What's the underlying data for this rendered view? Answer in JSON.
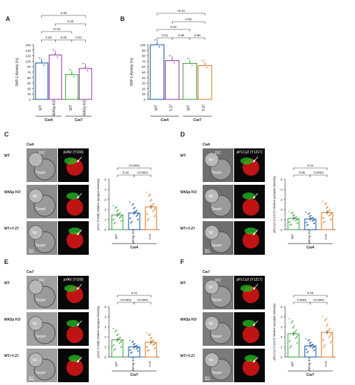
{
  "panels": {
    "A": {
      "label": "A",
      "ylabel": "SHP-1 Activity (%)",
      "yticks": [
        "0",
        "15",
        "30",
        "45",
        "60",
        "75",
        "90",
        "105",
        "120",
        "135",
        "150"
      ],
      "bars": [
        {
          "x": "WT",
          "v": 100
        },
        {
          "x": "WASp KO",
          "v": 122
        },
        {
          "x": "WT",
          "v": 68
        },
        {
          "x": "WASp KO",
          "v": 85
        }
      ],
      "groups": [
        "Cw4",
        "Cw7"
      ],
      "pvals": [
        "0.28",
        "0.05",
        "0.04",
        "<0.01",
        "0.20",
        "0.28"
      ]
    },
    "B": {
      "label": "B",
      "ylabel": "SHP-1 Activity (%)",
      "yticks": [
        "0",
        "10",
        "20",
        "30",
        "40",
        "50",
        "60",
        "70",
        "80",
        "90",
        "100"
      ],
      "bars": [
        {
          "x": "WT",
          "v": 100
        },
        {
          "x": "Y-27",
          "v": 71
        },
        {
          "x": "WT",
          "v": 66
        },
        {
          "x": "Y-27",
          "v": 62
        }
      ],
      "groups": [
        "Cw4",
        "Cw7"
      ],
      "pvals": [
        "0.04",
        "0.99",
        "0.95",
        "0.02",
        "0.83",
        "<0.01"
      ]
    },
    "C": {
      "label": "C",
      "cell": "Cw4",
      "stain": "pVAV (Y160)",
      "rows": [
        "WT",
        "WASp KO",
        "WT+Y-27"
      ],
      "ylabel": "pVAV (Y160) relative synapse intensity",
      "yticks": [
        "0",
        "1",
        "2",
        "3",
        "4",
        "5"
      ],
      "bars": [
        {
          "x": "WT",
          "v": 1.45
        },
        {
          "x": "WASp KO",
          "v": 1.65
        },
        {
          "x": "Y-27",
          "v": 2.25
        }
      ],
      "group": "Cw4",
      "pvals": [
        "0.42",
        "<0.0001",
        "<0.0001"
      ]
    },
    "D": {
      "label": "D",
      "cell": "Cw4",
      "stain": "pPLCγ2 (Y1217)",
      "rows": [
        "WT",
        "WASp KO",
        "WT+Y-27"
      ],
      "ylabel": "pPLCγ2 (Y1217) relative synapse intensity",
      "yticks": [
        "0",
        "1",
        "2",
        "3",
        "4",
        "5"
      ],
      "bars": [
        {
          "x": "WT",
          "v": 1.1
        },
        {
          "x": "WASp KO",
          "v": 1.05
        },
        {
          "x": "Y-27",
          "v": 1.7
        }
      ],
      "group": "Cw4",
      "pvals": [
        "0.99",
        "0.0004",
        "0.04"
      ]
    },
    "E": {
      "label": "E",
      "cell": "Cw7",
      "stain": "pVAV (Y160)",
      "rows": [
        "WT",
        "WASp KO",
        "WT+Y-27"
      ],
      "ylabel": "pVAV (Y160) relative synapse intensity",
      "yticks": [
        "0",
        "1",
        "2",
        "3",
        "4",
        "5"
      ],
      "bars": [
        {
          "x": "WT",
          "v": 1.7
        },
        {
          "x": "WASp KO",
          "v": 1.0
        },
        {
          "x": "Y-27",
          "v": 1.45
        }
      ],
      "group": "Cw7",
      "pvals": [
        "<0.0001",
        "<0.0001",
        "0.31"
      ]
    },
    "F": {
      "label": "F",
      "cell": "Cw7",
      "stain": "pPLCγ2 (Y1217)",
      "rows": [
        "WT",
        "WASp KO",
        "WT+Y-27"
      ],
      "ylabel": "pPLCγ2 (Y1217) relative synapse intensity",
      "yticks": [
        "0",
        "1",
        "2",
        "3",
        "4",
        "5"
      ],
      "bars": [
        {
          "x": "WT",
          "v": 2.3
        },
        {
          "x": "WASp KO",
          "v": 1.1
        },
        {
          "x": "Y-27",
          "v": 2.45
        }
      ],
      "group": "Cw7",
      "pvals": [
        "0.0001",
        "<0.0001",
        "0.16"
      ]
    }
  },
  "micro_labels": {
    "dic": "DIC",
    "target": "Target",
    "nk": "NK",
    "scale": "5μm"
  },
  "colors": {
    "wt": "#1f5fa8",
    "ko": "#a23aa8",
    "wt2": "#3aa83f",
    "y27": "#e07b22",
    "red": "#d51515",
    "green": "#22c022"
  },
  "chart_data": [
    {
      "type": "bar",
      "categories": [
        "Cw4 WT",
        "Cw4 WASp KO",
        "Cw7 WT",
        "Cw7 WASp KO"
      ],
      "values": [
        100,
        122,
        68,
        85
      ],
      "ylabel": "SHP-1 Activity (%)",
      "ylim": [
        0,
        150
      ]
    },
    {
      "type": "bar",
      "categories": [
        "Cw4 WT",
        "Cw4 Y-27",
        "Cw7 WT",
        "Cw7 Y-27"
      ],
      "values": [
        100,
        71,
        66,
        62
      ],
      "ylabel": "SHP-1 Activity (%)",
      "ylim": [
        0,
        100
      ]
    },
    {
      "type": "bar",
      "categories": [
        "WT",
        "WASp KO",
        "Y-27"
      ],
      "values": [
        1.45,
        1.65,
        2.25
      ],
      "ylabel": "pVAV (Y160) relative synapse intensity",
      "ylim": [
        0,
        5
      ]
    },
    {
      "type": "bar",
      "categories": [
        "WT",
        "WASp KO",
        "Y-27"
      ],
      "values": [
        1.1,
        1.05,
        1.7
      ],
      "ylabel": "pPLCγ2 (Y1217) relative synapse intensity",
      "ylim": [
        0,
        5
      ]
    },
    {
      "type": "bar",
      "categories": [
        "WT",
        "WASp KO",
        "Y-27"
      ],
      "values": [
        1.7,
        1.0,
        1.45
      ],
      "ylabel": "pVAV (Y160) relative synapse intensity",
      "ylim": [
        0,
        5
      ]
    },
    {
      "type": "bar",
      "categories": [
        "WT",
        "WASp KO",
        "Y-27"
      ],
      "values": [
        2.3,
        1.1,
        2.45
      ],
      "ylabel": "pPLCγ2 (Y1217) relative synapse intensity",
      "ylim": [
        0,
        5
      ]
    }
  ]
}
